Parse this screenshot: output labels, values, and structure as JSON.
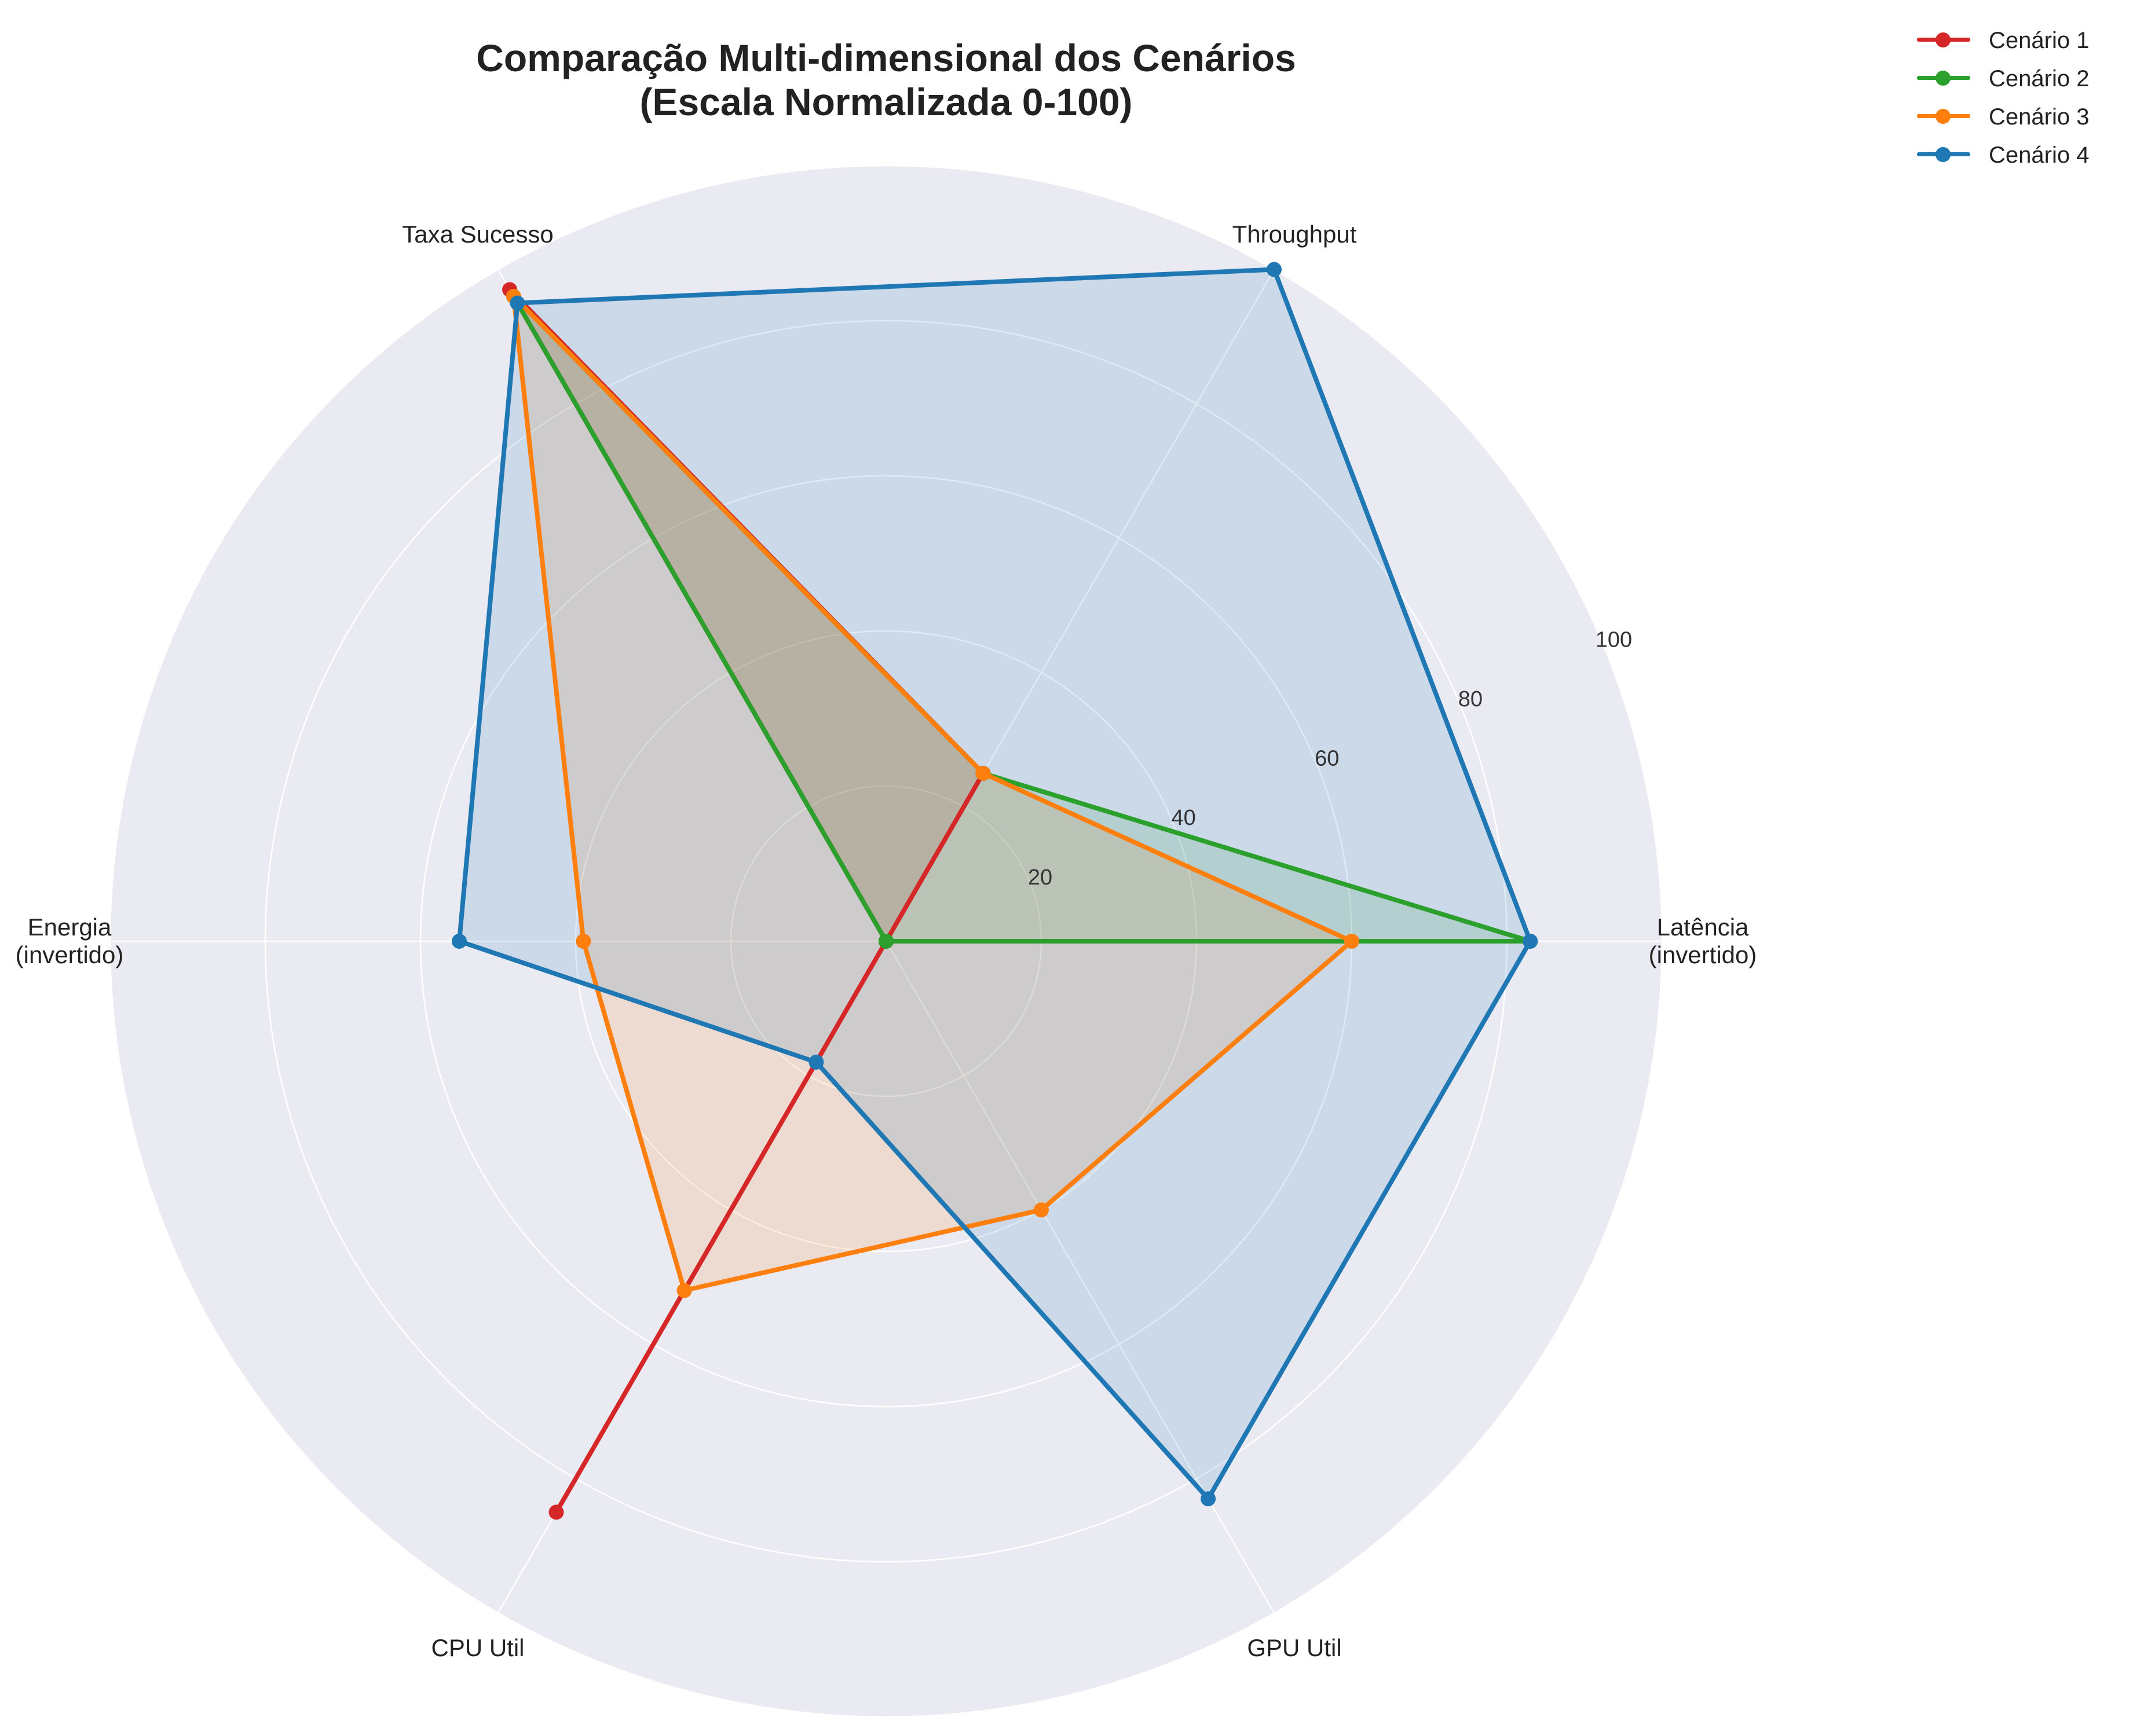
{
  "title": [
    "Comparação Multi-dimensional dos Cenários",
    "(Escala Normalizada 0-100)"
  ],
  "legend": [
    {
      "label": "Cenário 1",
      "color": "#d62728"
    },
    {
      "label": "Cenário 2",
      "color": "#2ca02c"
    },
    {
      "label": "Cenário 3",
      "color": "#ff7f0e"
    },
    {
      "label": "Cenário 4",
      "color": "#1f77b4"
    }
  ],
  "chart_data": {
    "type": "radar",
    "title": "Comparação Multi-dimensional dos Cenários (Escala Normalizada 0-100)",
    "categories": [
      "Latência\n(invertido)",
      "Throughput",
      "Taxa Sucesso",
      "Energia\n(invertido)",
      "CPU Util",
      "GPU Util"
    ],
    "rlim": [
      0,
      100
    ],
    "rticks": [
      20,
      40,
      60,
      80,
      100
    ],
    "grid": true,
    "legend_position": "top-right",
    "series": [
      {
        "name": "Cenário 1",
        "color": "#d62728",
        "values": [
          0,
          25,
          97,
          0,
          85,
          0
        ]
      },
      {
        "name": "Cenário 2",
        "color": "#2ca02c",
        "values": [
          83,
          25,
          96,
          0,
          0,
          0
        ]
      },
      {
        "name": "Cenário 3",
        "color": "#ff7f0e",
        "values": [
          60,
          25,
          96,
          39,
          52,
          40
        ]
      },
      {
        "name": "Cenário 4",
        "color": "#1f77b4",
        "values": [
          83,
          100,
          95,
          55,
          18,
          83
        ]
      }
    ]
  }
}
